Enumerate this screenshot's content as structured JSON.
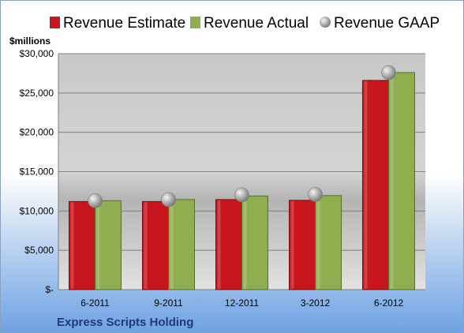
{
  "chart_data": {
    "type": "bar",
    "categories": [
      "6-2011",
      "9-2011",
      "12-2011",
      "3-2012",
      "6-2012"
    ],
    "series": [
      {
        "name": "Revenue Estimate",
        "kind": "bar",
        "color": "#c8161d",
        "values": [
          11200,
          11200,
          11450,
          11350,
          26600
        ]
      },
      {
        "name": "Revenue Actual",
        "kind": "bar",
        "color": "#8fae4f",
        "values": [
          11300,
          11450,
          11900,
          11950,
          27600
        ]
      },
      {
        "name": "Revenue GAAP",
        "kind": "marker",
        "color": "#a8a8a8",
        "values": [
          11300,
          11450,
          12050,
          12100,
          27600
        ]
      }
    ],
    "ylabel": "$millions",
    "ylim": [
      0,
      30000
    ],
    "yticks": [
      0,
      5000,
      10000,
      15000,
      20000,
      25000,
      30000
    ],
    "ytick_labels": [
      "$-",
      "$5,000",
      "$10,000",
      "$15,000",
      "$20,000",
      "$25,000",
      "$30,000"
    ],
    "grid": true,
    "legend_position": "top",
    "footer": "Express Scripts Holding"
  }
}
